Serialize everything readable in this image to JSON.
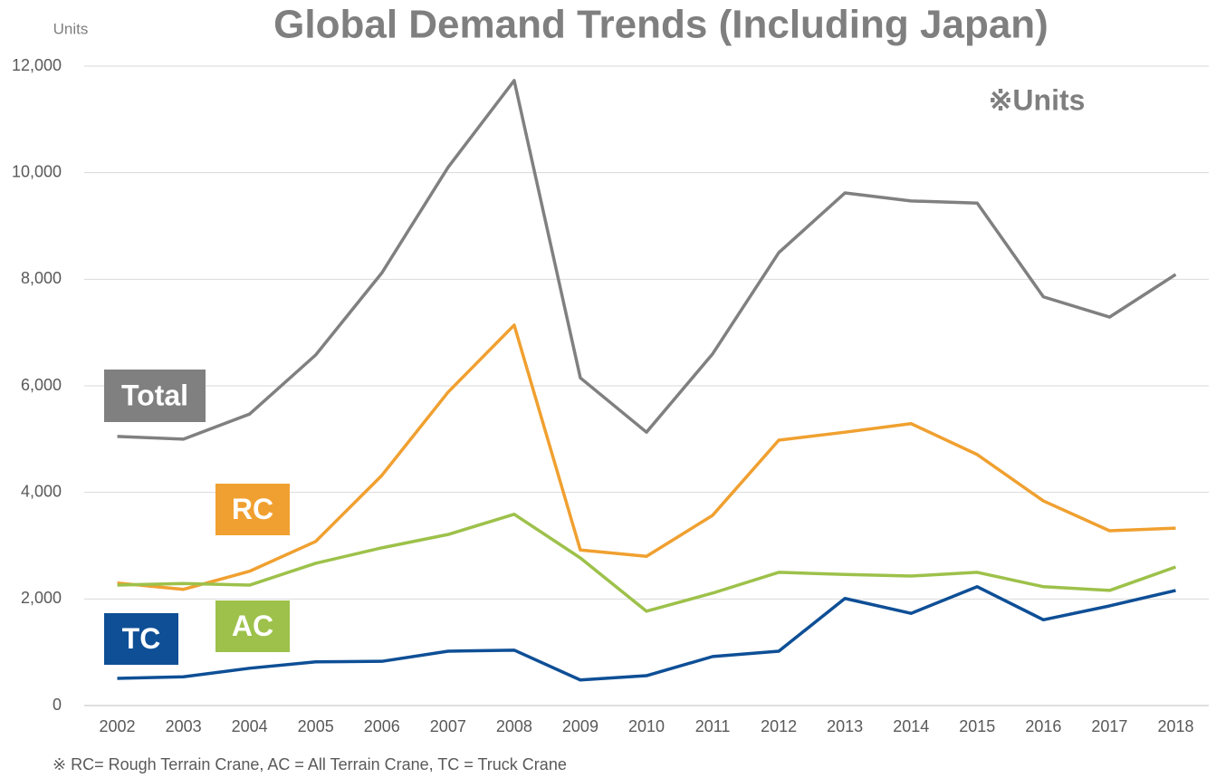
{
  "chart_data": {
    "type": "line",
    "title": "Global Demand Trends (Including Japan)",
    "y_axis_label": "Units",
    "annotation": "※Units",
    "footnote": "※ RC= Rough Terrain Crane, AC = All Terrain Crane, TC = Truck Crane",
    "categories": [
      "2002",
      "2003",
      "2004",
      "2005",
      "2006",
      "2007",
      "2008",
      "2009",
      "2010",
      "2011",
      "2012",
      "2013",
      "2014",
      "2015",
      "2016",
      "2017",
      "2018"
    ],
    "series": [
      {
        "name": "Total",
        "color": "#808080",
        "values": [
          5050,
          5000,
          5470,
          6580,
          8120,
          10100,
          11730,
          6150,
          5130,
          6600,
          8500,
          9620,
          9470,
          9430,
          7670,
          7290,
          8090
        ]
      },
      {
        "name": "RC",
        "color": "#f0a030",
        "values": [
          2300,
          2180,
          2520,
          3080,
          4320,
          5880,
          7140,
          2920,
          2800,
          3570,
          4980,
          5130,
          5290,
          4710,
          3840,
          3280,
          3330
        ]
      },
      {
        "name": "AC",
        "color": "#9dc14a",
        "values": [
          2260,
          2290,
          2260,
          2670,
          2960,
          3210,
          3590,
          2770,
          1770,
          2110,
          2500,
          2460,
          2430,
          2500,
          2230,
          2160,
          2600
        ]
      },
      {
        "name": "TC",
        "color": "#0e4f96",
        "values": [
          510,
          540,
          700,
          820,
          830,
          1020,
          1040,
          480,
          560,
          920,
          1020,
          2010,
          1730,
          2230,
          1610,
          1870,
          2160
        ]
      }
    ],
    "ylim": [
      0,
      12000
    ],
    "yticks": [
      0,
      {
        "value": 2000,
        "label": "2,000"
      },
      {
        "value": 4000,
        "label": "4,000"
      },
      {
        "value": 6000,
        "label": "6,000"
      },
      {
        "value": 8000,
        "label": "8,000"
      },
      {
        "value": 10000,
        "label": "10,000"
      },
      {
        "value": 12000,
        "label": "12,000"
      }
    ],
    "grid": true
  }
}
